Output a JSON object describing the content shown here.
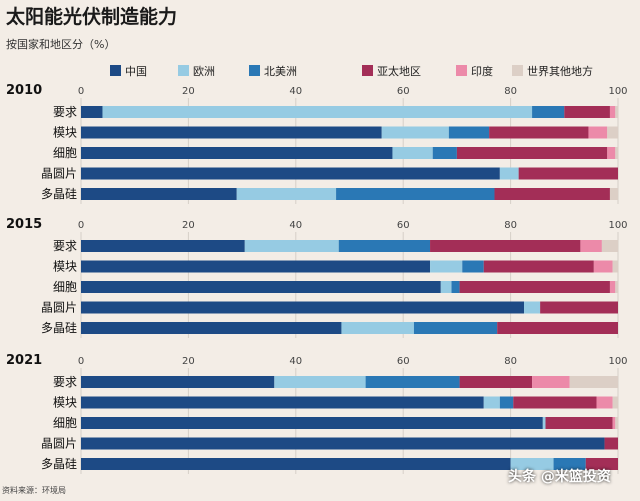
{
  "header": {
    "title": "太阳能光伏制造能力",
    "subtitle": "按国家和地区分（%）"
  },
  "footer": {
    "source": "资料来源：环境局",
    "watermark": "头条 @米篮投资"
  },
  "colors": {
    "background": "#f3ede6",
    "grid": "#d6d0c8"
  },
  "chart_data": {
    "type": "bar",
    "orientation": "horizontal",
    "stacked": true,
    "xlim": [
      0,
      100
    ],
    "ticks": [
      0,
      20,
      40,
      60,
      80,
      100
    ],
    "grid": true,
    "legend_position": "top",
    "categories": [
      "要求",
      "模块",
      "细胞",
      "晶圆片",
      "多晶硅"
    ],
    "series": [
      {
        "name": "中国",
        "color": "#1d4a85"
      },
      {
        "name": "欧洲",
        "color": "#96cbe3"
      },
      {
        "name": "北美洲",
        "color": "#2a78b5"
      },
      {
        "name": "亚太地区",
        "color": "#a32e57"
      },
      {
        "name": "印度",
        "color": "#ec8aa9"
      },
      {
        "name": "世界其他地方",
        "color": "#dccfc6"
      }
    ],
    "panels": [
      {
        "year": "2010",
        "rows": [
          [
            4,
            80,
            6,
            8.5,
            1,
            0.5
          ],
          [
            56,
            12.5,
            7.5,
            18.5,
            3.5,
            2
          ],
          [
            58,
            7.5,
            4.5,
            28,
            1.5,
            0.5
          ],
          [
            78,
            3.5,
            0,
            18.5,
            0,
            0
          ],
          [
            29,
            18.5,
            29.5,
            21.5,
            0,
            1.5
          ]
        ]
      },
      {
        "year": "2015",
        "rows": [
          [
            30.5,
            17.5,
            17,
            28,
            4,
            3
          ],
          [
            65,
            6,
            4,
            20.5,
            3.5,
            1
          ],
          [
            67,
            2,
            1.5,
            28,
            1,
            0.5
          ],
          [
            82.5,
            3,
            0,
            14.5,
            0,
            0
          ],
          [
            48.5,
            13.5,
            15.5,
            22.5,
            0,
            0
          ]
        ]
      },
      {
        "year": "2021",
        "rows": [
          [
            36,
            17,
            17.5,
            13.5,
            7,
            9
          ],
          [
            75,
            3,
            2.5,
            15.5,
            3,
            1
          ],
          [
            86,
            0.5,
            0,
            12.5,
            0.5,
            0.5
          ],
          [
            97.5,
            0,
            0,
            2.5,
            0,
            0
          ],
          [
            80,
            8,
            6,
            6,
            0,
            0
          ]
        ]
      }
    ]
  }
}
